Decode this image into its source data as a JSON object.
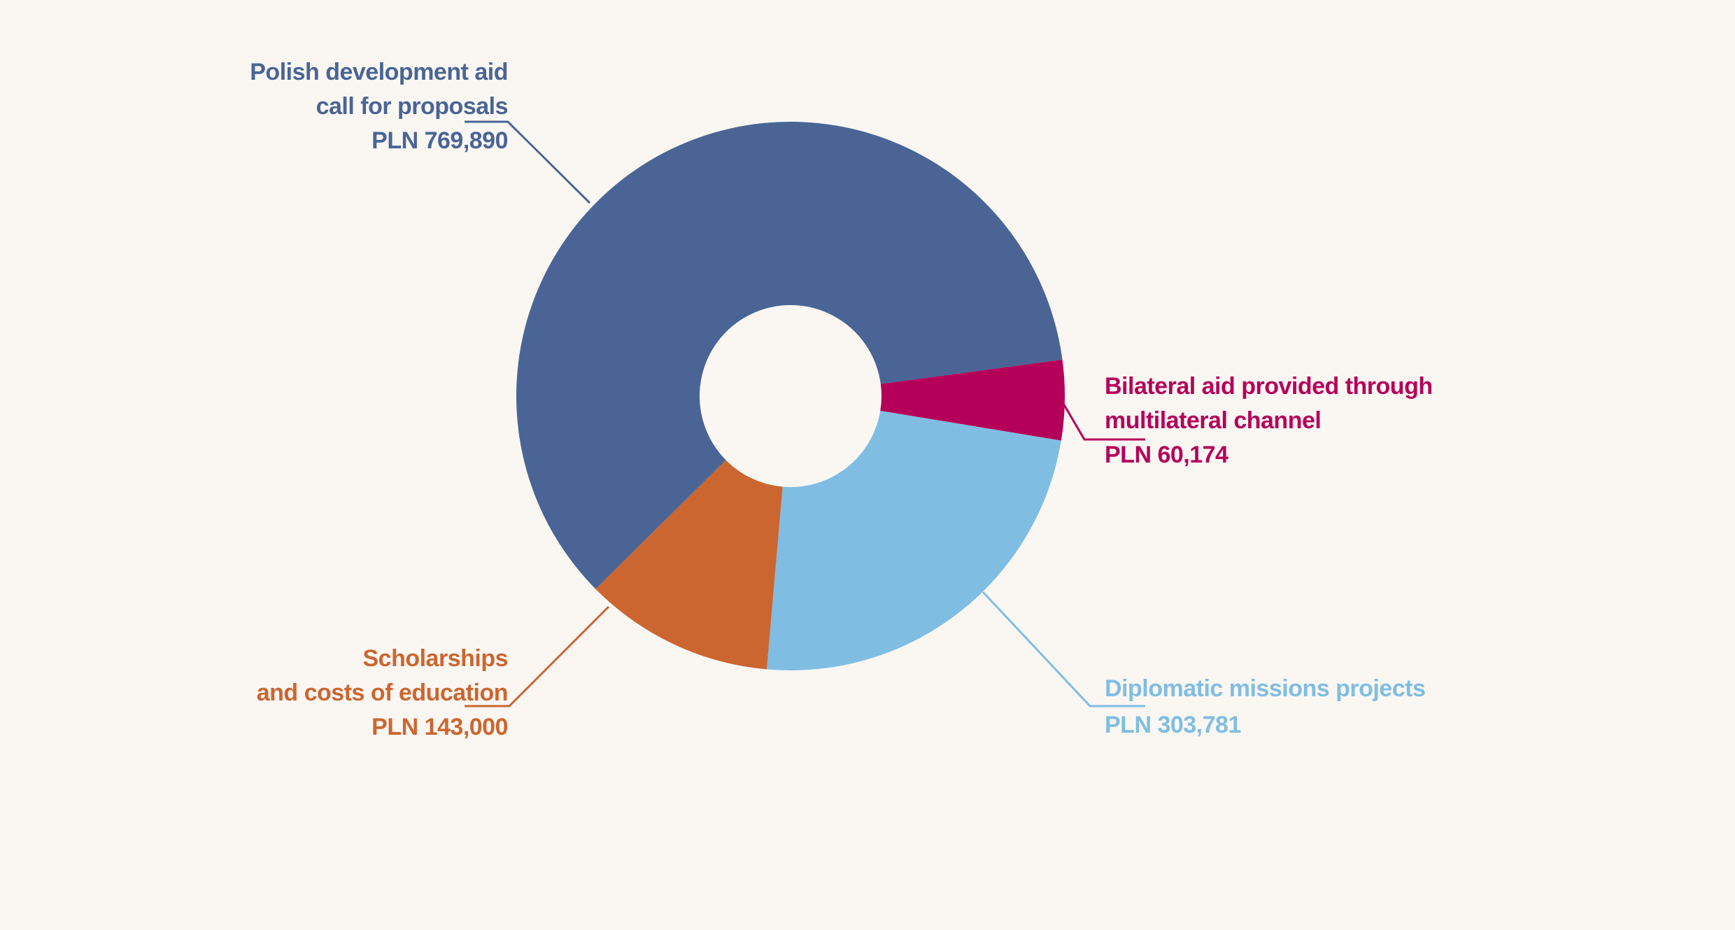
{
  "chart_data": {
    "type": "donut",
    "categories": [
      "Polish development aid\ncall for proposals",
      "Bilateral aid provided through\nmultilateral channel",
      "Diplomatic missions projects",
      "Scholarships\nand costs of education"
    ],
    "values": [
      769890,
      60174,
      303781,
      143000
    ],
    "value_labels": [
      "PLN 769,890",
      "PLN 60,174",
      "PLN 303,781",
      "PLN 143,000"
    ],
    "colors": [
      "#4a6595",
      "#b5005a",
      "#80bde3",
      "#cc6630"
    ]
  }
}
